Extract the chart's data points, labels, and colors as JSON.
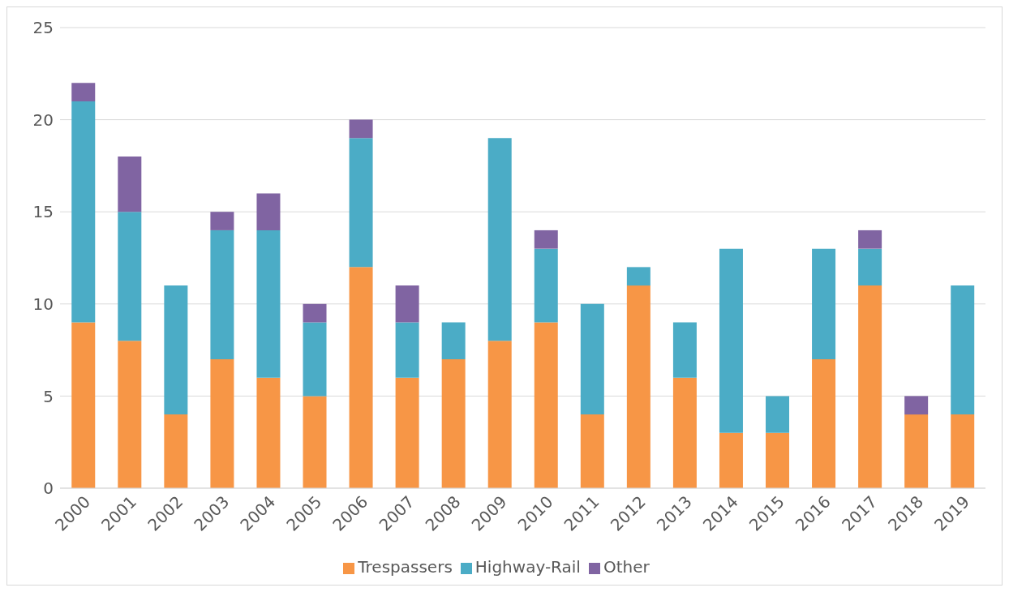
{
  "chart_data": {
    "type": "bar",
    "stacked": true,
    "categories": [
      "2000",
      "2001",
      "2002",
      "2003",
      "2004",
      "2005",
      "2006",
      "2007",
      "2008",
      "2009",
      "2010",
      "2011",
      "2012",
      "2013",
      "2014",
      "2015",
      "2016",
      "2017",
      "2018",
      "2019"
    ],
    "series": [
      {
        "name": "Trespassers",
        "color": "#f79646",
        "values": [
          9,
          8,
          4,
          7,
          6,
          5,
          12,
          6,
          7,
          8,
          9,
          4,
          11,
          6,
          3,
          3,
          7,
          11,
          4,
          4
        ]
      },
      {
        "name": "Highway-Rail",
        "color": "#4bacc6",
        "values": [
          12,
          7,
          7,
          7,
          8,
          4,
          7,
          3,
          2,
          11,
          4,
          6,
          1,
          3,
          10,
          2,
          6,
          2,
          0,
          7
        ]
      },
      {
        "name": "Other",
        "color": "#8064a2",
        "values": [
          1,
          3,
          0,
          1,
          2,
          1,
          1,
          2,
          0,
          0,
          1,
          0,
          0,
          0,
          0,
          0,
          0,
          1,
          1,
          0
        ]
      }
    ],
    "ylim": [
      0,
      25
    ],
    "yticks": [
      0,
      5,
      10,
      15,
      20,
      25
    ],
    "grid": "y",
    "legend": "bottom"
  }
}
